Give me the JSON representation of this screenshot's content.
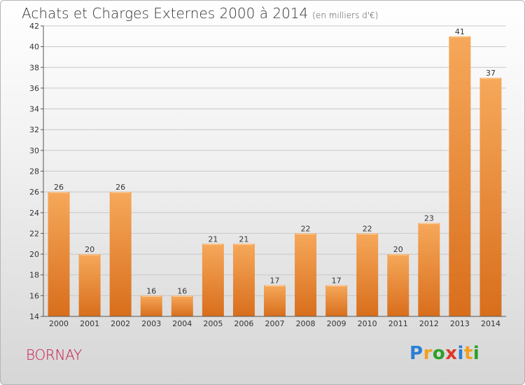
{
  "title": "Achats et Charges Externes 2000 à 2014",
  "subtitle": "(en milliers d'€)",
  "commune": "BORNAY",
  "logo": {
    "text": "Proxiti",
    "letters": [
      {
        "ch": "P",
        "color": "#2a7fd4"
      },
      {
        "ch": "r",
        "color": "#f0a020"
      },
      {
        "ch": "o",
        "color": "#2aa02a"
      },
      {
        "ch": "x",
        "color": "#e0352a"
      },
      {
        "ch": "i",
        "color": "#2a7fd4"
      },
      {
        "ch": "t",
        "color": "#f0a020"
      },
      {
        "ch": "i",
        "color": "#2aa02a"
      }
    ]
  },
  "colors": {
    "bar_light": "#f6a85a",
    "bar_dark": "#d86e1c",
    "grid": "#c8c8c8",
    "axis": "#555555"
  },
  "chart_data": {
    "type": "bar",
    "categories": [
      "2000",
      "2001",
      "2002",
      "2003",
      "2004",
      "2005",
      "2006",
      "2007",
      "2008",
      "2009",
      "2010",
      "2011",
      "2012",
      "2013",
      "2014"
    ],
    "values": [
      26,
      20,
      26,
      16,
      16,
      21,
      21,
      17,
      22,
      17,
      22,
      20,
      23,
      41,
      37
    ],
    "ylim": [
      14,
      42
    ],
    "yticks": [
      14,
      16,
      18,
      20,
      22,
      24,
      26,
      28,
      30,
      32,
      34,
      36,
      38,
      40,
      42
    ],
    "grid": true,
    "title": "Achats et Charges Externes 2000 à 2014",
    "xlabel": "",
    "ylabel": ""
  }
}
